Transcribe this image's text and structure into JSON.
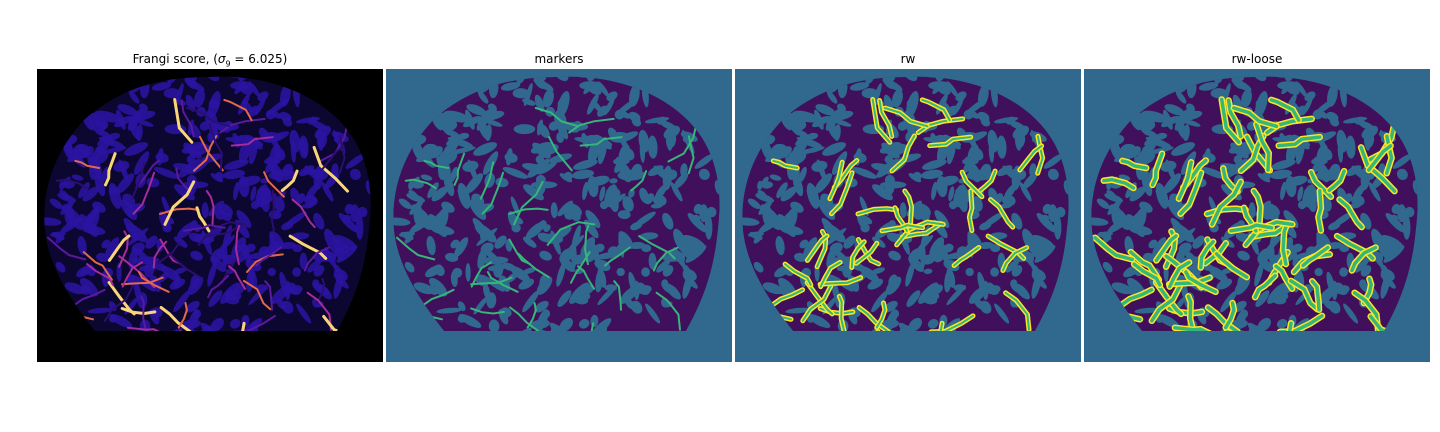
{
  "figure": {
    "panels": [
      {
        "id": "frangi",
        "title_prefix": "Frangi score, (",
        "title_symbol": "σ",
        "title_subscript": "9",
        "title_suffix": " = 6.025)",
        "colormap": "magma",
        "background_color": "#000000",
        "blob_color": "#0c0a2e",
        "vessel_colors": [
          "#2a0f6e",
          "#5a19a0",
          "#a52c9a",
          "#e26a4a",
          "#fbd57a"
        ]
      },
      {
        "id": "markers",
        "title": "markers",
        "colormap": "viridis",
        "background_color": "#30688e",
        "blob_color": "#440154",
        "marker_color": "#35b779"
      },
      {
        "id": "rw",
        "title": "rw",
        "colormap": "viridis",
        "background_color": "#30688e",
        "blob_color": "#440154",
        "segment_fill_color": "#35b779",
        "segment_edge_color": "#fde725"
      },
      {
        "id": "rw-loose",
        "title": "rw-loose",
        "colormap": "viridis",
        "background_color": "#30688e",
        "blob_color": "#440154",
        "segment_fill_color": "#35b779",
        "segment_edge_color": "#fde725"
      }
    ]
  }
}
